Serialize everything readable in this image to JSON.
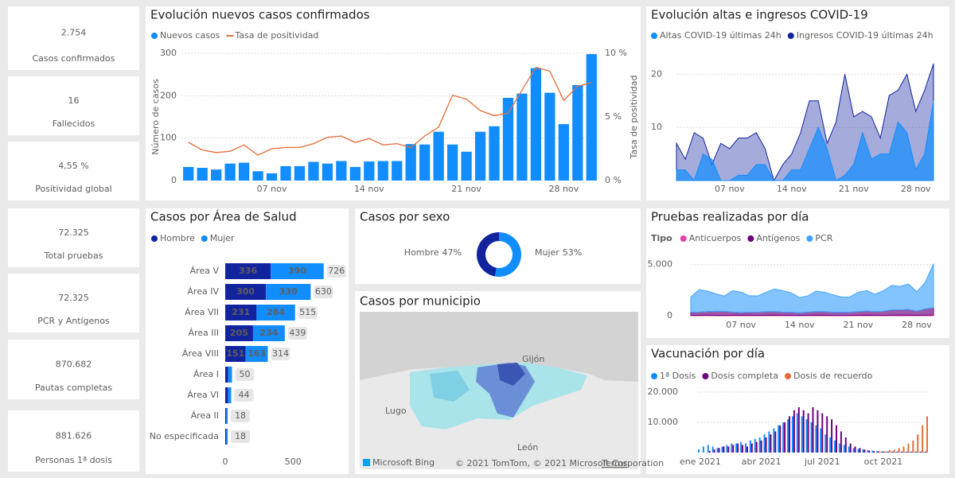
{
  "kpis": [
    {
      "value": "2.754",
      "label": "Casos confirmados",
      "color": "#118dff"
    },
    {
      "value": "16",
      "label": "Fallecidos",
      "color": "#252423"
    },
    {
      "value": "4,55 %",
      "label": "Positividad global",
      "color": "#12239e"
    },
    {
      "value": "72.325",
      "label": "Total pruebas",
      "color": "#e66c37"
    },
    {
      "value": "72.325",
      "label": "PCR y Antígenos",
      "color": "#e66c37"
    },
    {
      "value": "870.682",
      "label": "Pautas completas",
      "color": "#8b2f8f"
    },
    {
      "value": "881.626",
      "label": "Personas 1ª dosis",
      "color": "#118dff"
    }
  ],
  "chart_data": [
    {
      "type": "bar-line",
      "title": "Evolución nuevos casos confirmados",
      "categories": [
        null,
        null,
        null,
        null,
        null,
        null,
        "07 nov",
        null,
        null,
        null,
        null,
        null,
        null,
        "14 nov",
        null,
        null,
        null,
        null,
        null,
        null,
        "21 nov",
        null,
        null,
        null,
        null,
        null,
        null,
        "28 nov",
        null,
        null
      ],
      "series": [
        {
          "name": "Nuevos casos",
          "type": "bar",
          "color": "#118dff",
          "values": [
            32,
            30,
            26,
            40,
            42,
            22,
            17,
            34,
            34,
            44,
            40,
            46,
            32,
            45,
            46,
            46,
            86,
            85,
            115,
            85,
            68,
            115,
            128,
            195,
            205,
            265,
            207,
            133,
            225,
            298
          ]
        },
        {
          "name": "Tasa de positividad",
          "type": "line",
          "axis": "y2",
          "color": "#e66c37",
          "values": [
            3.0,
            2.4,
            2.2,
            2.3,
            2.8,
            2.0,
            2.5,
            2.6,
            2.6,
            2.9,
            3.4,
            3.5,
            3.0,
            3.3,
            2.8,
            2.9,
            2.6,
            3.5,
            4.2,
            6.7,
            6.4,
            5.5,
            5.1,
            5.3,
            7.1,
            8.9,
            8.6,
            6.3,
            7.4,
            7.7
          ]
        }
      ],
      "ylabel": "Número de casos",
      "y2label": "Tasa de positividad",
      "ylim": [
        0,
        300
      ],
      "yticks": [
        0,
        100,
        200,
        300
      ],
      "y2lim": [
        0,
        10
      ],
      "y2ticks": [
        {
          "value": 0,
          "label": "0 %"
        },
        {
          "value": 5,
          "label": "5 %"
        },
        {
          "value": 10,
          "label": "10 %"
        }
      ],
      "grid": true
    },
    {
      "type": "area",
      "title": "Evolución altas e ingresos COVID-19",
      "categories": [
        null,
        null,
        null,
        null,
        null,
        null,
        "07 nov",
        null,
        null,
        null,
        null,
        null,
        null,
        "14 nov",
        null,
        null,
        null,
        null,
        null,
        null,
        "21 nov",
        null,
        null,
        null,
        null,
        null,
        null,
        "28 nov",
        null,
        null
      ],
      "series": [
        {
          "name": "Altas COVID-19 últimas 24h",
          "color": "#118dff",
          "values": [
            2,
            2,
            0,
            5,
            4,
            0,
            0,
            1,
            1,
            3,
            3,
            0,
            0,
            2,
            2,
            6,
            10,
            6,
            0,
            1,
            3,
            9,
            4,
            5,
            5,
            11,
            9,
            2,
            5,
            15
          ]
        },
        {
          "name": "Ingresos COVID-19 últimas 24h",
          "color": "#12239e",
          "values": [
            7,
            4,
            9,
            8,
            3,
            7,
            6,
            8,
            8,
            9,
            6,
            0,
            3,
            5,
            9,
            15,
            15,
            7,
            11,
            20,
            12,
            13,
            12,
            8,
            16,
            17,
            20,
            13,
            17,
            22
          ]
        }
      ],
      "ylim": [
        0,
        25
      ],
      "yticks": [
        10,
        20
      ],
      "grid": true
    },
    {
      "type": "hbar-stacked",
      "title": "Casos por Área de Salud",
      "categories": [
        "Área V",
        "Área IV",
        "Área VII",
        "Área III",
        "Área VIII",
        "Área I",
        "Área VI",
        "Área II",
        "No especificada"
      ],
      "series": [
        {
          "name": "Hombre",
          "color": "#12239e",
          "values": [
            336,
            300,
            231,
            205,
            151,
            22,
            20,
            8,
            8
          ]
        },
        {
          "name": "Mujer",
          "color": "#118dff",
          "values": [
            390,
            330,
            284,
            234,
            163,
            28,
            24,
            10,
            10
          ]
        }
      ],
      "totals": [
        726,
        630,
        515,
        439,
        314,
        50,
        44,
        18,
        18
      ],
      "xlim": [
        0,
        880
      ],
      "xticks": [
        0,
        500
      ]
    },
    {
      "type": "donut",
      "title": "Casos por sexo",
      "categories": [
        "Hombre",
        "Mujer"
      ],
      "values": [
        47,
        53
      ],
      "value_labels": [
        "47%",
        "53%"
      ],
      "colors": [
        "#12239e",
        "#118dff"
      ]
    },
    {
      "type": "stacked-area",
      "title": "Pruebas realizadas por día",
      "legend_title": "Tipo",
      "categories": [
        null,
        null,
        null,
        null,
        null,
        null,
        "07 nov",
        null,
        null,
        null,
        null,
        null,
        null,
        "14 nov",
        null,
        null,
        null,
        null,
        null,
        null,
        "21 nov",
        null,
        null,
        null,
        null,
        null,
        null,
        "28 nov",
        null,
        null
      ],
      "series": [
        {
          "name": "Anticuerpos",
          "color": "#e044a7",
          "values": [
            40,
            50,
            60,
            40,
            30,
            50,
            60,
            50,
            40,
            50,
            60,
            50,
            40,
            30,
            50,
            60,
            50,
            40,
            30,
            40,
            50,
            60,
            50,
            40,
            60,
            70,
            60,
            50,
            60,
            80
          ]
        },
        {
          "name": "Antígenos",
          "color": "#6b007b",
          "values": [
            300,
            300,
            350,
            400,
            400,
            300,
            250,
            300,
            300,
            350,
            350,
            300,
            300,
            250,
            300,
            350,
            350,
            300,
            300,
            300,
            350,
            400,
            350,
            400,
            500,
            500,
            550,
            400,
            600,
            700
          ]
        },
        {
          "name": "PCR",
          "color": "#41a4ff",
          "values": [
            1500,
            2200,
            2000,
            1700,
            1500,
            2100,
            2000,
            1600,
            1600,
            1900,
            2200,
            2100,
            1900,
            1500,
            1600,
            2000,
            1900,
            1700,
            1500,
            1500,
            1900,
            2000,
            1700,
            2000,
            2400,
            2300,
            2500,
            1900,
            2600,
            4300
          ]
        }
      ],
      "ylim": [
        0,
        5600
      ],
      "yticks": [
        0,
        {
          "value": 5000,
          "label": "5.000"
        }
      ],
      "grid": true
    },
    {
      "type": "bar",
      "title": "Vacunación por día",
      "categories": [
        "ene 2021",
        null,
        null,
        null,
        null,
        null,
        null,
        null,
        null,
        null,
        null,
        null,
        null,
        "abr 2021",
        null,
        null,
        null,
        null,
        null,
        null,
        null,
        null,
        null,
        null,
        null,
        null,
        "jul 2021",
        null,
        null,
        null,
        null,
        null,
        null,
        null,
        null,
        null,
        null,
        null,
        null,
        "oct 2021",
        null,
        null,
        null,
        null,
        null,
        null,
        null,
        null,
        null
      ],
      "series": [
        {
          "name": "1ª Dosis",
          "color": "#118dff",
          "values": [
            1000,
            2000,
            2500,
            2000,
            1500,
            2000,
            2500,
            3000,
            3000,
            3500,
            3000,
            4000,
            4500,
            5000,
            6000,
            7000,
            8000,
            9000,
            10000,
            11000,
            12000,
            13000,
            12000,
            11000,
            10000,
            9000,
            8000,
            6000,
            5000,
            4000,
            3000,
            2500,
            2000,
            1500,
            1200,
            1000,
            800,
            600,
            500,
            400,
            300,
            300,
            200,
            200,
            200,
            200,
            200,
            200,
            200
          ]
        },
        {
          "name": "Dosis completa",
          "color": "#6b007b",
          "values": [
            0,
            0,
            500,
            1000,
            1500,
            2000,
            2000,
            2500,
            3000,
            2500,
            2000,
            3000,
            3500,
            4000,
            5000,
            6000,
            7000,
            9000,
            10000,
            12000,
            14000,
            15000,
            14000,
            13000,
            15000,
            14000,
            13000,
            12000,
            11000,
            9000,
            7000,
            5000,
            3000,
            2000,
            1500,
            1000,
            700,
            500,
            400,
            300,
            300,
            300,
            300,
            300,
            300,
            300,
            300,
            300,
            300
          ]
        },
        {
          "name": "Dosis de recuerdo",
          "color": "#e66c37",
          "values": [
            0,
            0,
            0,
            0,
            0,
            0,
            0,
            0,
            0,
            0,
            0,
            0,
            0,
            0,
            0,
            0,
            0,
            0,
            0,
            0,
            0,
            0,
            0,
            0,
            0,
            0,
            0,
            0,
            0,
            0,
            0,
            0,
            0,
            0,
            0,
            0,
            0,
            0,
            200,
            400,
            800,
            1000,
            1500,
            2000,
            3000,
            4000,
            6000,
            9000,
            12000
          ]
        }
      ],
      "ylim": [
        0,
        21500
      ],
      "yticks": [
        {
          "value": 10000,
          "label": "10.000"
        },
        {
          "value": 20000,
          "label": "20.000"
        }
      ],
      "grid": true
    }
  ],
  "map": {
    "title": "Casos por municipio",
    "places": [
      "Gijón",
      "Lugo",
      "León"
    ],
    "provider": "Microsoft Bing",
    "attribution": "© 2021 TomTom, © 2021 Microsoft Corporation",
    "terms": "Terms"
  }
}
